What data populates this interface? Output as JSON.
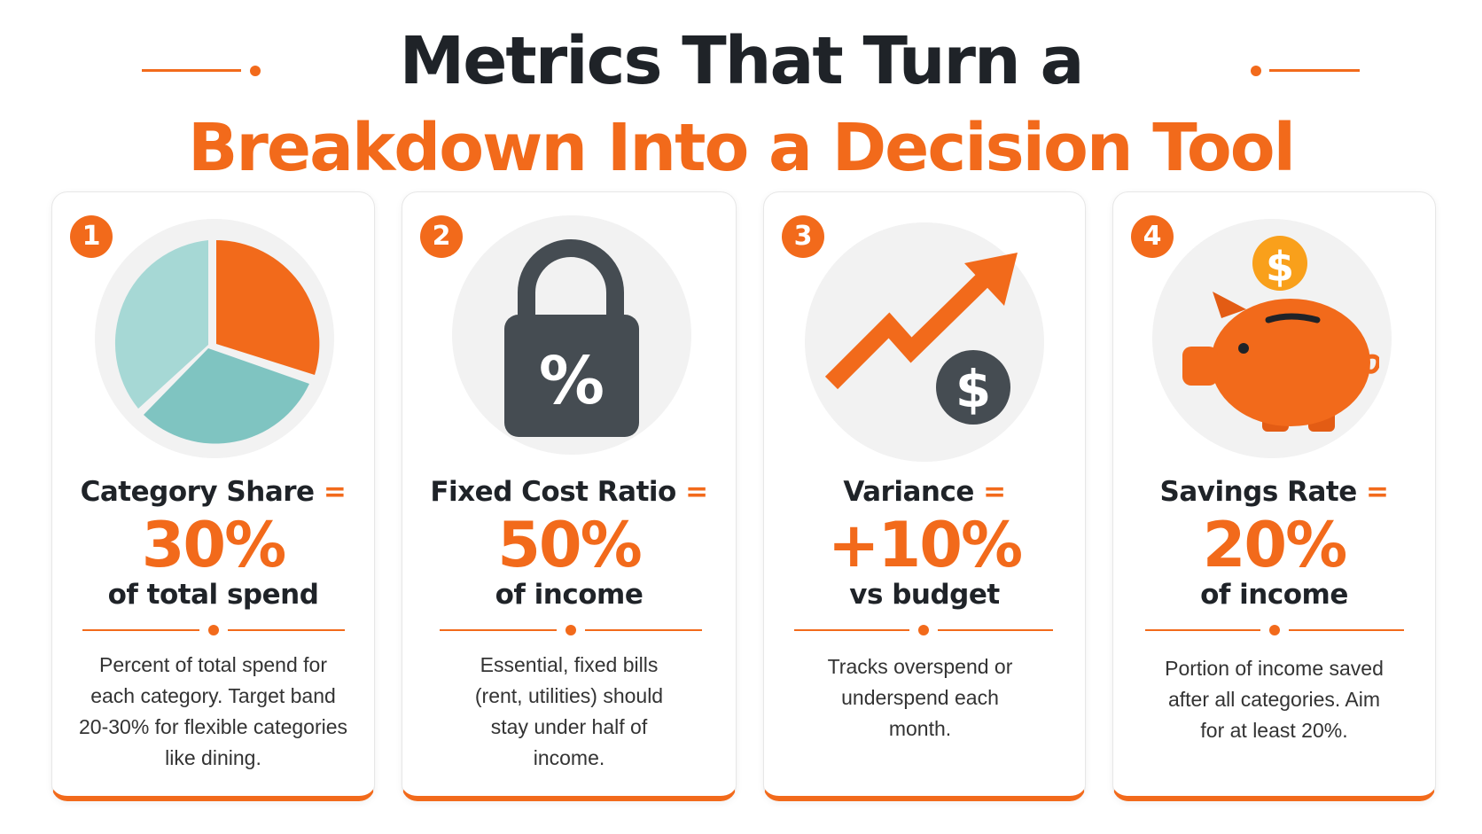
{
  "title": {
    "line1": "Metrics That Turn a",
    "line2": "Breakdown Into a Decision Tool"
  },
  "colors": {
    "accent": "#f26a1b",
    "dark": "#1f2328",
    "teal": "#8ecfcc"
  },
  "cards": [
    {
      "number": "1",
      "icon": "pie-chart-icon",
      "label": "Category Share",
      "equals": "=",
      "value": "30%",
      "unit": "of total spend",
      "description": "Percent of total spend for each category. Target band 20-30% for flexible categories like dining."
    },
    {
      "number": "2",
      "icon": "padlock-percent-icon",
      "label": "Fixed Cost Ratio",
      "equals": "=",
      "value": "50%",
      "unit": "of income",
      "description": "Essential, fixed bills (rent, utilities) should stay under half of income."
    },
    {
      "number": "3",
      "icon": "trend-arrow-dollar-icon",
      "label": "Variance",
      "equals": "=",
      "value": "+10%",
      "unit": "vs budget",
      "description": "Tracks overspend or underspend each month."
    },
    {
      "number": "4",
      "icon": "piggy-bank-icon",
      "label": "Savings Rate",
      "equals": "=",
      "value": "20%",
      "unit": "of income",
      "description": "Portion of income saved after all categories. Aim for at least 20%."
    }
  ]
}
